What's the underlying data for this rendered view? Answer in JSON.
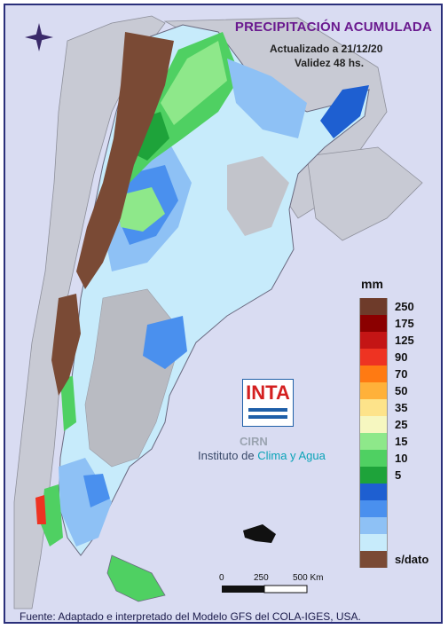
{
  "header": {
    "title": "PRECIPITACIÓN ACUMULADA",
    "updated": "Actualizado a 21/12/20",
    "validity": "Validez 48 hs."
  },
  "legend": {
    "unit": "mm",
    "items": [
      {
        "label": "250",
        "color": "#6e3b2a"
      },
      {
        "label": "175",
        "color": "#8b0000"
      },
      {
        "label": "125",
        "color": "#c41515"
      },
      {
        "label": "90",
        "color": "#ee3322"
      },
      {
        "label": "70",
        "color": "#ff7a12"
      },
      {
        "label": "50",
        "color": "#ffb13a"
      },
      {
        "label": "35",
        "color": "#fde38a"
      },
      {
        "label": "25",
        "color": "#f6f7c0"
      },
      {
        "label": "15",
        "color": "#8ee88a"
      },
      {
        "label": "10",
        "color": "#4fd062"
      },
      {
        "label": "5",
        "color": "#1ea33a"
      },
      {
        "label": "",
        "color": "#1e5fd1"
      },
      {
        "label": "",
        "color": "#4a90ee"
      },
      {
        "label": "",
        "color": "#8ec1f5"
      },
      {
        "label": "",
        "color": "#c7ebfb"
      },
      {
        "label": "s/dato",
        "color": "#7a4a35"
      }
    ]
  },
  "scale": {
    "zero": "0",
    "mid": "250",
    "max": "500 Km"
  },
  "logo": {
    "name": "INTA",
    "center": "CIRN",
    "institute_prefix": "Instituto de ",
    "institute_accent": "Clima y Agua"
  },
  "footer": {
    "source": "Fuente: Adaptado e interpretado del Modelo GFS del COLA-IGES, USA."
  }
}
